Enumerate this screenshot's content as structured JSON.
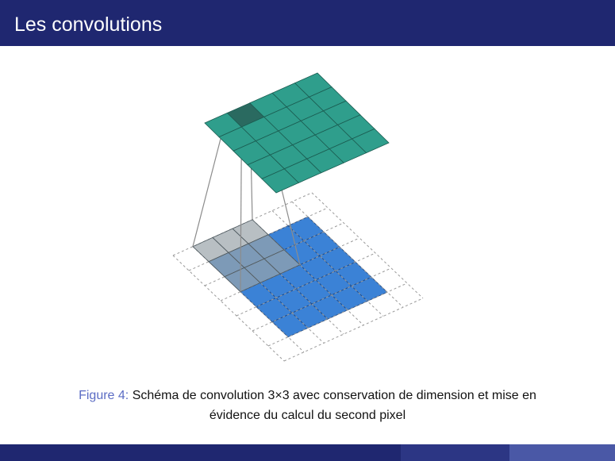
{
  "header": {
    "title": "Les convolutions"
  },
  "figure": {
    "caption_label": "Figure 4:",
    "caption_line1": "Schéma de convolution 3×3 avec conservation de dimension et mise en",
    "caption_line2": "évidence du calcul du second pixel"
  },
  "diagram": {
    "input_size": 5,
    "padding": 1,
    "kernel_size": 3,
    "output_size": 5,
    "highlighted_output": {
      "row": 0,
      "col": 1
    },
    "colors": {
      "input": "#3b82d6",
      "input_stroke": "#1d4680",
      "output": "#2f9e8c",
      "output_stroke": "#1b5c51",
      "highlight": "#2a6a60",
      "kernel": "#9aa4aa",
      "padding_grid": "#9a9a9a",
      "link": "#8c8c8c"
    }
  },
  "theme": {
    "bar": "#1f2770",
    "caption_label": "#5b6cc4"
  }
}
